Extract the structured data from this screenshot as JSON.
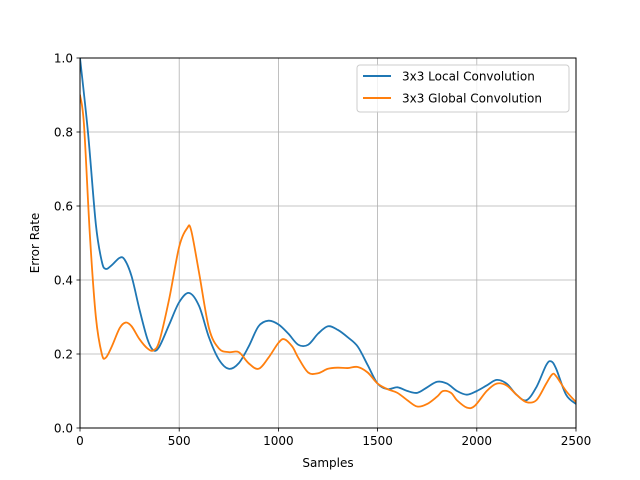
{
  "chart_data": {
    "type": "line",
    "title": "",
    "xlabel": "Samples",
    "ylabel": "Error Rate",
    "xlim": [
      0,
      2500
    ],
    "ylim": [
      0.0,
      1.0
    ],
    "xticks": [
      0,
      500,
      1000,
      1500,
      2000,
      2500
    ],
    "xtick_labels": [
      "0",
      "500",
      "1000",
      "1500",
      "2000",
      "2500"
    ],
    "yticks": [
      0.0,
      0.2,
      0.4,
      0.6,
      0.8,
      1.0
    ],
    "ytick_labels": [
      "0.0",
      "0.2",
      "0.4",
      "0.6",
      "0.8",
      "1.0"
    ],
    "grid": true,
    "legend_position": "top-right",
    "series": [
      {
        "name": "3x3 Local Convolution",
        "color": "#1f77b4",
        "x": [
          0,
          40,
          80,
          110,
          130,
          160,
          200,
          225,
          260,
          300,
          340,
          370,
          400,
          450,
          500,
          550,
          600,
          650,
          700,
          750,
          800,
          850,
          900,
          950,
          1000,
          1050,
          1100,
          1150,
          1200,
          1250,
          1300,
          1350,
          1400,
          1450,
          1500,
          1550,
          1600,
          1650,
          1700,
          1750,
          1800,
          1850,
          1900,
          1950,
          2000,
          2050,
          2100,
          2150,
          2200,
          2250,
          2300,
          2350,
          2375,
          2400,
          2450,
          2500
        ],
        "values": [
          1.0,
          0.8,
          0.55,
          0.45,
          0.43,
          0.44,
          0.46,
          0.455,
          0.41,
          0.32,
          0.24,
          0.21,
          0.22,
          0.28,
          0.34,
          0.365,
          0.33,
          0.245,
          0.185,
          0.16,
          0.175,
          0.22,
          0.275,
          0.29,
          0.28,
          0.255,
          0.225,
          0.225,
          0.255,
          0.275,
          0.265,
          0.245,
          0.22,
          0.17,
          0.12,
          0.105,
          0.11,
          0.1,
          0.095,
          0.11,
          0.125,
          0.12,
          0.1,
          0.09,
          0.1,
          0.115,
          0.13,
          0.12,
          0.09,
          0.075,
          0.11,
          0.17,
          0.18,
          0.16,
          0.09,
          0.065
        ]
      },
      {
        "name": "3x3 Global Convolution",
        "color": "#ff7f0e",
        "x": [
          0,
          20,
          50,
          80,
          110,
          130,
          160,
          200,
          230,
          260,
          300,
          340,
          370,
          400,
          450,
          500,
          540,
          560,
          600,
          650,
          700,
          750,
          800,
          850,
          900,
          950,
          1000,
          1030,
          1070,
          1100,
          1150,
          1200,
          1250,
          1300,
          1350,
          1400,
          1450,
          1500,
          1550,
          1600,
          1650,
          1700,
          1750,
          1800,
          1830,
          1870,
          1900,
          1950,
          1990,
          2050,
          2100,
          2150,
          2200,
          2250,
          2300,
          2350,
          2380,
          2400,
          2450,
          2500
        ],
        "values": [
          0.9,
          0.82,
          0.52,
          0.3,
          0.2,
          0.19,
          0.22,
          0.27,
          0.285,
          0.275,
          0.24,
          0.215,
          0.21,
          0.235,
          0.35,
          0.49,
          0.54,
          0.535,
          0.42,
          0.27,
          0.215,
          0.205,
          0.205,
          0.175,
          0.16,
          0.19,
          0.23,
          0.24,
          0.22,
          0.19,
          0.15,
          0.148,
          0.16,
          0.163,
          0.162,
          0.165,
          0.15,
          0.12,
          0.105,
          0.095,
          0.075,
          0.058,
          0.065,
          0.085,
          0.1,
          0.095,
          0.075,
          0.055,
          0.06,
          0.1,
          0.12,
          0.115,
          0.09,
          0.07,
          0.075,
          0.12,
          0.145,
          0.14,
          0.1,
          0.07
        ]
      }
    ]
  }
}
